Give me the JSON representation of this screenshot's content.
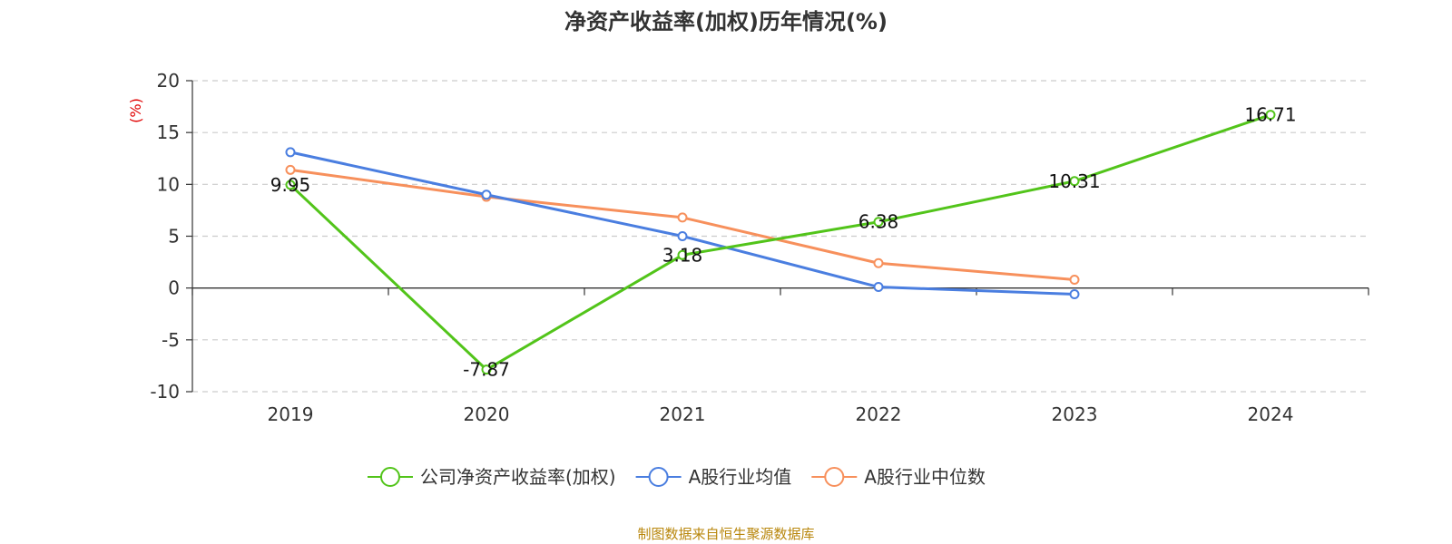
{
  "chart_data": {
    "type": "line",
    "title": "净资产收益率(加权)历年情况(%)",
    "ylabel": "(%)",
    "ylim": [
      -10,
      20
    ],
    "yticks": [
      20,
      15,
      10,
      5,
      0,
      -5,
      -10
    ],
    "categories": [
      "2019",
      "2020",
      "2021",
      "2022",
      "2023",
      "2024"
    ],
    "grid": true,
    "legend_position": "bottom",
    "series": [
      {
        "name": "公司净资产收益率(加权)",
        "color": "#52c41a",
        "show_labels": true,
        "values": [
          9.95,
          -7.87,
          3.18,
          6.38,
          10.31,
          16.71
        ]
      },
      {
        "name": "A股行业均值",
        "color": "#4a7ee0",
        "show_labels": false,
        "values": [
          13.1,
          9.0,
          5.0,
          0.1,
          -0.6,
          null
        ]
      },
      {
        "name": "A股行业中位数",
        "color": "#f7905c",
        "show_labels": false,
        "values": [
          11.4,
          8.8,
          6.8,
          2.4,
          0.8,
          null
        ]
      }
    ]
  },
  "source": "制图数据来自恒生聚源数据库",
  "colors": {
    "ylabel": "#e00000",
    "grid": "#cccccc",
    "axis": "#333333"
  }
}
